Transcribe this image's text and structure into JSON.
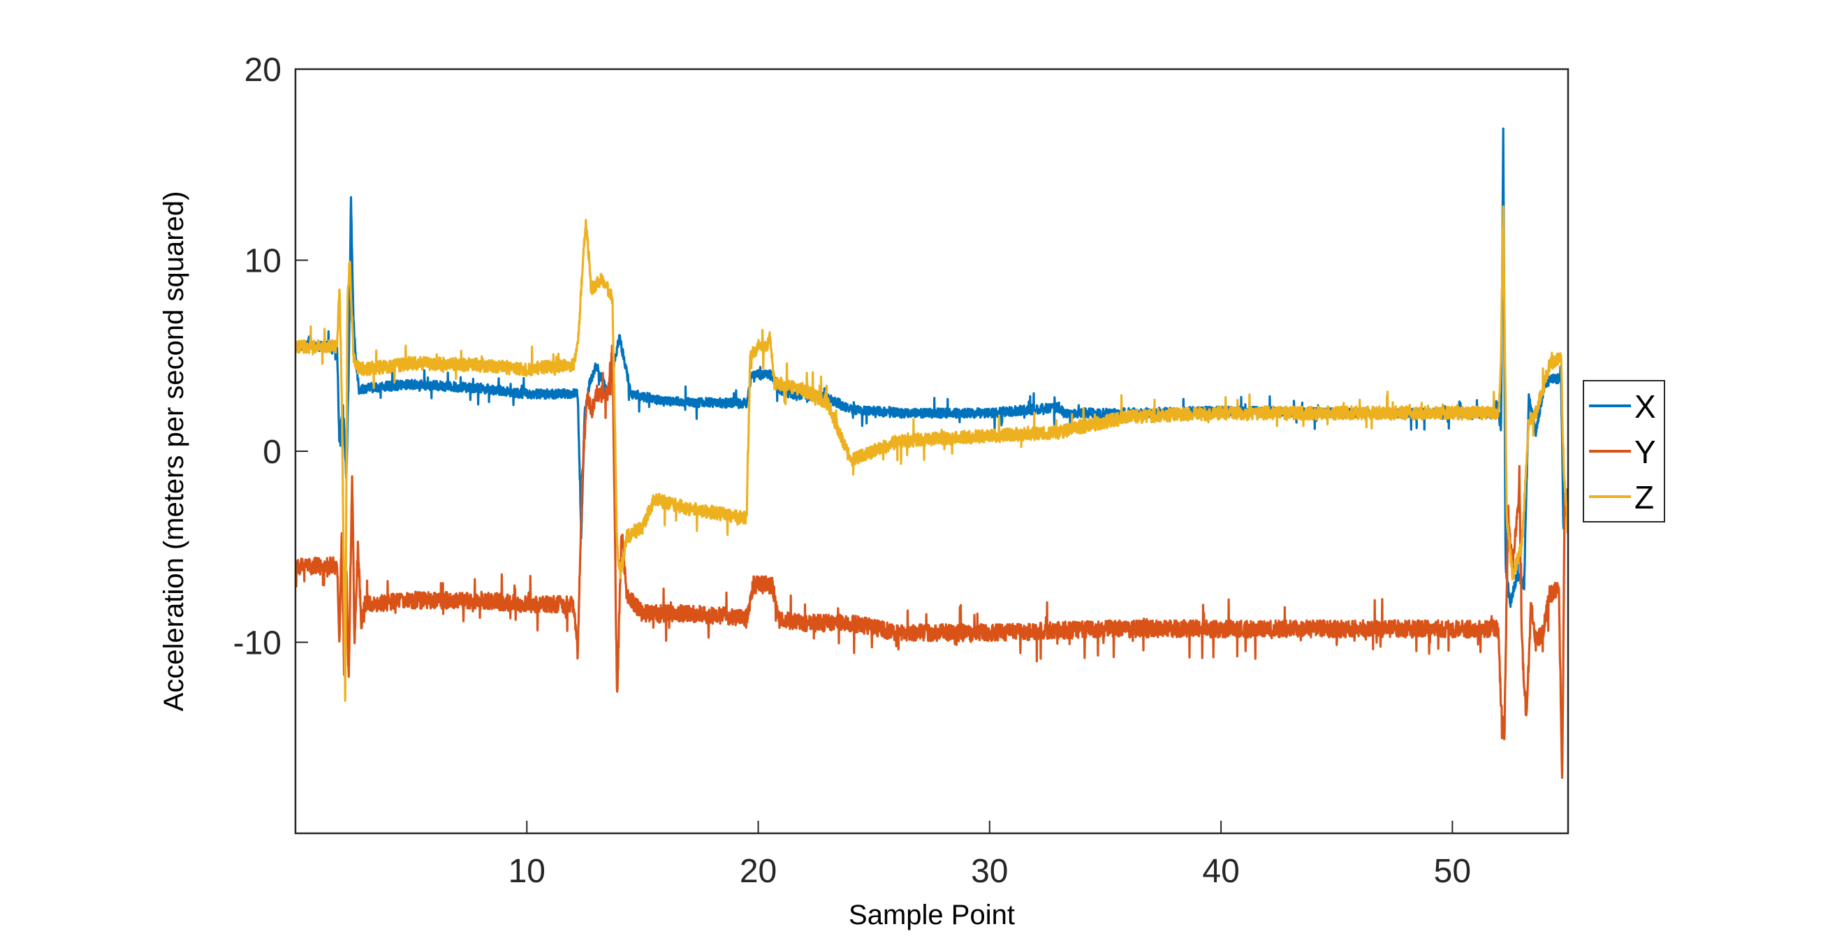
{
  "chart_data": {
    "type": "line",
    "title": "",
    "xlabel": "Sample Point",
    "ylabel": "Acceleration (meters per second squared)",
    "xlim": [
      0,
      55
    ],
    "ylim": [
      -20,
      20
    ],
    "xticks": [
      10,
      20,
      30,
      40,
      50
    ],
    "xtick_labels": [
      "10",
      "20",
      "30",
      "40",
      "50"
    ],
    "yticks": [
      -10,
      0,
      10,
      20
    ],
    "ytick_labels": [
      "-10",
      "0",
      "10",
      "20"
    ],
    "grid": false,
    "legend": {
      "placement": "outside-right",
      "entries": [
        "X",
        "Y",
        "Z"
      ]
    },
    "series": [
      {
        "name": "X",
        "color": "#0072BD",
        "noise": 0.25,
        "x": [
          0,
          1.8,
          1.9,
          2.05,
          2.2,
          2.3,
          2.4,
          2.5,
          2.6,
          2.75,
          3.0,
          5.0,
          8.0,
          10.0,
          12.0,
          12.2,
          12.35,
          12.5,
          12.7,
          13.0,
          13.5,
          14.0,
          14.5,
          16.0,
          19.5,
          19.7,
          20.0,
          20.6,
          20.9,
          21.5,
          23.0,
          24.0,
          26.0,
          30.0,
          33.0,
          33.2,
          36.0,
          40.0,
          45.0,
          52.0,
          52.1,
          52.2,
          52.3,
          52.5,
          52.8,
          53.1,
          53.3,
          53.6,
          54.0,
          54.3,
          54.7,
          54.8,
          55.0
        ],
        "y": [
          5.5,
          5.5,
          0.5,
          2.5,
          -1.5,
          4.0,
          13.3,
          7.0,
          5.0,
          3.2,
          3.3,
          3.5,
          3.3,
          3.0,
          3.0,
          3.0,
          -4.5,
          2.0,
          3.5,
          4.5,
          3.0,
          6.0,
          3.0,
          2.6,
          2.5,
          4.0,
          4.0,
          4.0,
          3.2,
          3.0,
          2.8,
          2.2,
          2.0,
          2.0,
          2.3,
          2.0,
          2.0,
          2.1,
          2.0,
          2.0,
          1.0,
          16.8,
          -6.0,
          -8.0,
          -6.5,
          -7.0,
          2.8,
          1.0,
          3.5,
          3.8,
          3.8,
          -4.0,
          -2.0
        ]
      },
      {
        "name": "Y",
        "color": "#D95319",
        "noise": 0.45,
        "x": [
          0,
          1.8,
          1.9,
          2.0,
          2.1,
          2.2,
          2.3,
          2.45,
          2.55,
          2.7,
          2.85,
          3.0,
          5.0,
          8.0,
          10.0,
          12.0,
          12.2,
          12.4,
          12.6,
          12.8,
          13.0,
          13.5,
          13.7,
          13.9,
          14.1,
          14.3,
          15.0,
          17.0,
          19.5,
          19.8,
          20.6,
          20.9,
          22.0,
          24.0,
          26.0,
          30.0,
          35.0,
          40.0,
          45.0,
          52.0,
          52.1,
          52.25,
          52.4,
          52.6,
          52.9,
          53.0,
          53.2,
          53.4,
          53.6,
          53.9,
          54.2,
          54.6,
          54.75,
          54.85,
          55.0
        ],
        "y": [
          -6.0,
          -6.0,
          -10.0,
          -4.0,
          -11.5,
          -6.0,
          -12.0,
          -1.0,
          -10.0,
          -5.0,
          -9.0,
          -8.0,
          -7.8,
          -7.8,
          -8.0,
          -8.0,
          -10.5,
          -1.0,
          3.0,
          2.0,
          3.0,
          3.0,
          5.5,
          -13.0,
          -4.0,
          -7.5,
          -8.5,
          -8.5,
          -8.7,
          -7.0,
          -7.0,
          -8.8,
          -9.0,
          -9.0,
          -9.5,
          -9.5,
          -9.3,
          -9.3,
          -9.3,
          -9.3,
          -13.5,
          -15.0,
          -3.5,
          -6.0,
          -2.0,
          -10.0,
          -14.0,
          -8.0,
          -10.0,
          -9.5,
          -7.5,
          -7.2,
          -17.5,
          -2.0,
          -4.0
        ]
      },
      {
        "name": "Z",
        "color": "#EDB120",
        "noise": 0.35,
        "x": [
          0,
          1.8,
          1.9,
          2.0,
          2.15,
          2.25,
          2.35,
          2.5,
          2.6,
          2.8,
          3.0,
          5.0,
          8.0,
          10.0,
          12.0,
          12.2,
          12.4,
          12.55,
          12.8,
          13.2,
          13.5,
          13.7,
          13.9,
          14.05,
          14.3,
          15.0,
          15.5,
          17.0,
          19.5,
          19.65,
          20.0,
          20.4,
          20.5,
          20.7,
          21.0,
          22.0,
          23.0,
          24.0,
          26.0,
          27.0,
          30.0,
          33.0,
          36.0,
          40.0,
          45.0,
          52.0,
          52.1,
          52.2,
          52.35,
          52.6,
          53.0,
          53.3,
          53.6,
          54.2,
          54.7,
          54.8,
          55.0
        ],
        "y": [
          5.5,
          5.5,
          8.5,
          3.0,
          -13.0,
          8.0,
          10.0,
          5.0,
          4.5,
          4.3,
          4.3,
          4.6,
          4.5,
          4.3,
          4.5,
          5.5,
          9.5,
          12.0,
          8.5,
          9.0,
          8.5,
          8.0,
          -5.0,
          -6.5,
          -4.5,
          -4.0,
          -2.5,
          -3.0,
          -3.5,
          5.0,
          5.5,
          5.5,
          6.0,
          3.5,
          3.5,
          3.2,
          2.5,
          -0.5,
          0.5,
          0.6,
          0.8,
          1.0,
          1.8,
          2.0,
          2.0,
          2.0,
          5.0,
          13.0,
          -3.5,
          -6.5,
          -5.0,
          1.5,
          2.0,
          4.5,
          5.0,
          -0.5,
          -4.5
        ]
      }
    ]
  }
}
